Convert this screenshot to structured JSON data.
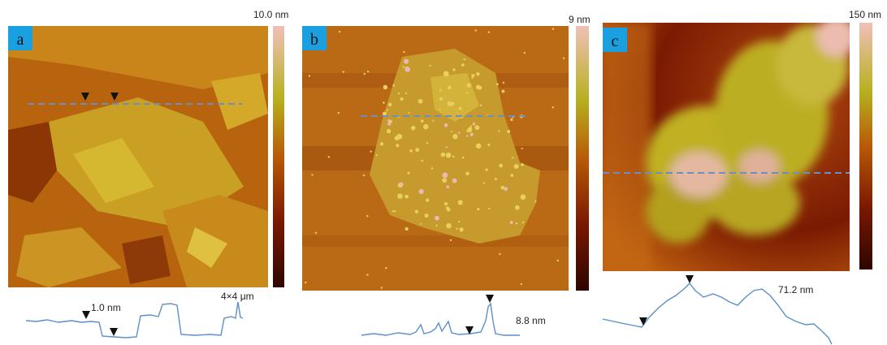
{
  "panels": [
    {
      "label": "a",
      "scale_label": "10.0 nm",
      "profile_labels": [
        "1.0 nm",
        "4×4 μm"
      ]
    },
    {
      "label": "b",
      "scale_label": "9 nm",
      "profile_labels": [
        "8.8 nm"
      ]
    },
    {
      "label": "c",
      "scale_label": "150 nm",
      "profile_labels": [
        "71.2 nm"
      ]
    }
  ]
}
